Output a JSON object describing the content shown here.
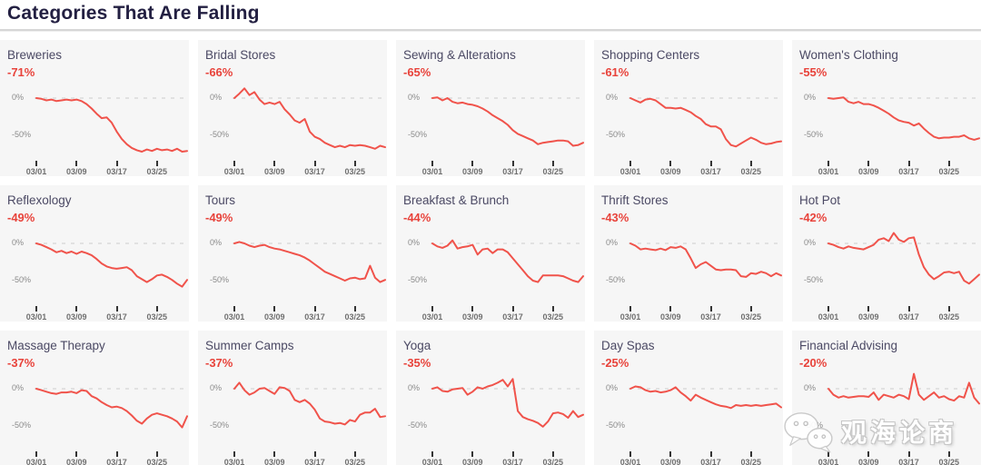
{
  "header": {
    "title": "Categories That Are Falling"
  },
  "colors": {
    "accent_red": "#e8433b",
    "line_red": "#f0534b",
    "card_bg": "#f6f6f6",
    "title_dark": "#232042",
    "card_title": "#4b4964",
    "axis_gray": "#8a8a8a",
    "grid_dash": "#cccccc",
    "divider": "#d6d6d6"
  },
  "watermark": {
    "icon": "wechat-icon",
    "text": "观海论商"
  },
  "chart_data": {
    "type": "line",
    "title": "Categories That Are Falling",
    "layout": "small-multiples-5x3",
    "x_start": "03/01",
    "x_tick_labels": [
      "03/01",
      "03/09",
      "03/17",
      "03/25"
    ],
    "x_tick_indices": [
      0,
      8,
      16,
      24
    ],
    "y_axis": {
      "labels": [
        "0%",
        "-50%"
      ],
      "values": [
        0,
        -50
      ]
    },
    "y_domain": [
      20,
      -80
    ],
    "gridline": "dashed at 0% only",
    "series": [
      {
        "name": "Breweries",
        "change": "-71%",
        "values": [
          0,
          -1,
          -3,
          -2,
          -4,
          -3,
          -2,
          -3,
          -2,
          -4,
          -8,
          -14,
          -21,
          -27,
          -26,
          -33,
          -45,
          -55,
          -62,
          -67,
          -70,
          -72,
          -69,
          -71,
          -68,
          -70,
          -69,
          -71,
          -68,
          -72,
          -71
        ]
      },
      {
        "name": "Bridal Stores",
        "change": "-66%",
        "values": [
          0,
          6,
          13,
          4,
          8,
          -2,
          -8,
          -6,
          -8,
          -5,
          -15,
          -22,
          -30,
          -33,
          -28,
          -45,
          -52,
          -55,
          -60,
          -63,
          -66,
          -64,
          -66,
          -63,
          -64,
          -63,
          -64,
          -66,
          -68,
          -64,
          -66
        ]
      },
      {
        "name": "Sewing & Alterations",
        "change": "-65%",
        "values": [
          0,
          1,
          -3,
          0,
          -5,
          -7,
          -6,
          -8,
          -9,
          -11,
          -14,
          -18,
          -23,
          -27,
          -31,
          -36,
          -43,
          -48,
          -51,
          -54,
          -57,
          -62,
          -60,
          -59,
          -58,
          -57,
          -57,
          -58,
          -64,
          -63,
          -60
        ]
      },
      {
        "name": "Shopping Centers",
        "change": "-61%",
        "values": [
          0,
          -3,
          -6,
          -2,
          -1,
          -3,
          -8,
          -13,
          -13,
          -14,
          -13,
          -16,
          -19,
          -24,
          -28,
          -35,
          -38,
          -38,
          -42,
          -55,
          -63,
          -65,
          -61,
          -57,
          -53,
          -56,
          -60,
          -62,
          -61,
          -59,
          -58
        ]
      },
      {
        "name": "Women's Clothing",
        "change": "-55%",
        "values": [
          0,
          -1,
          0,
          1,
          -5,
          -7,
          -5,
          -8,
          -8,
          -10,
          -13,
          -17,
          -21,
          -26,
          -30,
          -32,
          -33,
          -37,
          -34,
          -41,
          -47,
          -52,
          -54,
          -53,
          -53,
          -52,
          -52,
          -50,
          -54,
          -56,
          -54
        ]
      },
      {
        "name": "Reflexology",
        "change": "-49%",
        "values": [
          0,
          -2,
          -5,
          -8,
          -12,
          -10,
          -13,
          -11,
          -14,
          -11,
          -13,
          -16,
          -21,
          -27,
          -31,
          -33,
          -34,
          -33,
          -32,
          -36,
          -44,
          -48,
          -52,
          -48,
          -43,
          -42,
          -45,
          -49,
          -54,
          -58,
          -49
        ]
      },
      {
        "name": "Tours",
        "change": "-49%",
        "values": [
          0,
          2,
          0,
          -3,
          -5,
          -3,
          -2,
          -5,
          -7,
          -8,
          -10,
          -12,
          -14,
          -16,
          -19,
          -23,
          -28,
          -33,
          -38,
          -41,
          -44,
          -47,
          -50,
          -47,
          -46,
          -48,
          -47,
          -30,
          -46,
          -52,
          -49
        ]
      },
      {
        "name": "Breakfast & Brunch",
        "change": "-44%",
        "values": [
          0,
          -4,
          -6,
          -3,
          4,
          -7,
          -5,
          -4,
          -2,
          -15,
          -8,
          -7,
          -13,
          -8,
          -8,
          -12,
          -20,
          -28,
          -36,
          -44,
          -50,
          -52,
          -43,
          -43,
          -43,
          -43,
          -44,
          -47,
          -50,
          -52,
          -44
        ]
      },
      {
        "name": "Thrift Stores",
        "change": "-43%",
        "values": [
          0,
          -3,
          -8,
          -7,
          -8,
          -9,
          -7,
          -9,
          -5,
          -6,
          -4,
          -8,
          -20,
          -33,
          -28,
          -25,
          -30,
          -35,
          -36,
          -35,
          -35,
          -36,
          -44,
          -45,
          -40,
          -41,
          -38,
          -40,
          -44,
          -40,
          -43
        ]
      },
      {
        "name": "Hot Pot",
        "change": "-42%",
        "values": [
          0,
          -2,
          -5,
          -7,
          -4,
          -6,
          -7,
          -8,
          -5,
          -2,
          5,
          7,
          3,
          14,
          5,
          2,
          7,
          8,
          -15,
          -32,
          -42,
          -48,
          -44,
          -39,
          -38,
          -40,
          -38,
          -50,
          -54,
          -48,
          -42
        ]
      },
      {
        "name": "Massage Therapy",
        "change": "-37%",
        "values": [
          0,
          -2,
          -4,
          -6,
          -7,
          -5,
          -5,
          -4,
          -6,
          -2,
          -3,
          -10,
          -13,
          -18,
          -22,
          -25,
          -24,
          -26,
          -30,
          -36,
          -43,
          -47,
          -40,
          -35,
          -33,
          -35,
          -37,
          -40,
          -44,
          -52,
          -37
        ]
      },
      {
        "name": "Summer Camps",
        "change": "-37%",
        "values": [
          0,
          8,
          -2,
          -8,
          -5,
          0,
          1,
          -3,
          -7,
          2,
          1,
          -3,
          -15,
          -18,
          -15,
          -20,
          -28,
          -40,
          -44,
          -45,
          -47,
          -46,
          -48,
          -42,
          -44,
          -35,
          -32,
          -32,
          -27,
          -38,
          -37
        ]
      },
      {
        "name": "Yoga",
        "change": "-35%",
        "values": [
          0,
          2,
          -3,
          -4,
          -1,
          0,
          1,
          -8,
          -4,
          2,
          0,
          3,
          5,
          8,
          12,
          3,
          13,
          -30,
          -38,
          -41,
          -43,
          -46,
          -51,
          -44,
          -33,
          -32,
          -34,
          -39,
          -30,
          -38,
          -35
        ]
      },
      {
        "name": "Day Spas",
        "change": "-25%",
        "values": [
          0,
          3,
          2,
          -2,
          -4,
          -3,
          -5,
          -4,
          -2,
          2,
          -5,
          -10,
          -16,
          -8,
          -12,
          -15,
          -18,
          -21,
          -23,
          -24,
          -26,
          -22,
          -23,
          -22,
          -23,
          -22,
          -23,
          -22,
          -21,
          -20,
          -25
        ]
      },
      {
        "name": "Financial Advising",
        "change": "-20%",
        "values": [
          0,
          -8,
          -12,
          -10,
          -12,
          -11,
          -10,
          -10,
          -11,
          -5,
          -15,
          -8,
          -10,
          -12,
          -8,
          -10,
          -14,
          20,
          -8,
          -15,
          -10,
          -5,
          -12,
          -10,
          -14,
          -16,
          -10,
          -12,
          8,
          -12,
          -20
        ]
      }
    ]
  }
}
